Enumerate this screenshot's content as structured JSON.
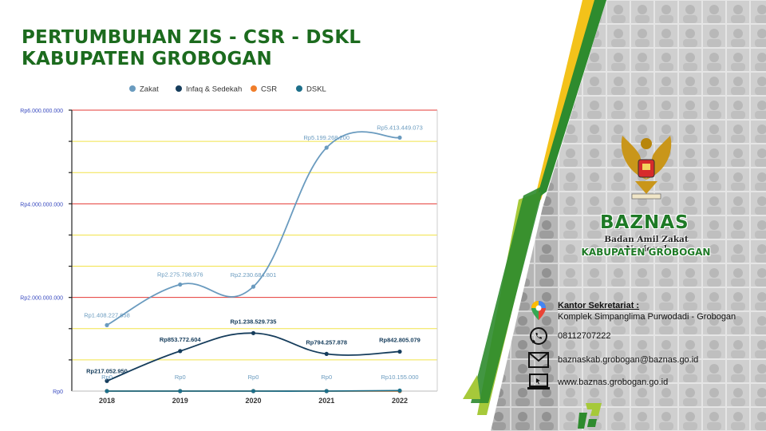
{
  "title": {
    "line1": "PERTUMBUHAN ZIS - CSR - DSKL",
    "line2": "KABUPATEN GROBOGAN"
  },
  "chart_data": {
    "type": "line",
    "categories": [
      "2018",
      "2019",
      "2020",
      "2021",
      "2022"
    ],
    "ylim": [
      0,
      6000000000
    ],
    "y_ticks": [
      {
        "value": 0,
        "label": "Rp0"
      },
      {
        "value": 2000000000,
        "label": "Rp2.000.000.000"
      },
      {
        "value": 4000000000,
        "label": "Rp4.000.000.000"
      },
      {
        "value": 6000000000,
        "label": "Rp6.000.000.000"
      }
    ],
    "legend_position": "top",
    "grid": true,
    "series": [
      {
        "name": "Zakat",
        "color": "#6a9bbf",
        "values": [
          1408227658,
          2275798976,
          2230684801,
          5199268200,
          5413449073
        ],
        "labels": [
          "Rp1.408.227.658",
          "Rp2.275.798.976",
          "Rp2.230.684.801",
          "Rp5.199.268.200",
          "Rp5.413.449.073"
        ]
      },
      {
        "name": "Infaq & Sedekah",
        "color": "#163d5c",
        "values": [
          217052950,
          853772604,
          1238529735,
          794257878,
          842805079
        ],
        "labels": [
          "Rp217.052.950",
          "Rp853.772.604",
          "Rp1.238.529.735",
          "Rp794.257.878",
          "Rp842.805.079"
        ]
      },
      {
        "name": "CSR",
        "color": "#f07d2a",
        "values": [
          0,
          0,
          0,
          0,
          0
        ],
        "labels": []
      },
      {
        "name": "DSKL",
        "color": "#1d6f8a",
        "values": [
          0,
          0,
          0,
          0,
          10155000
        ],
        "labels": [
          "Rp0",
          "Rp0",
          "Rp0",
          "Rp0",
          "Rp10.155.000"
        ]
      }
    ]
  },
  "logo": {
    "name": "BAZNAS",
    "subtitle": "Badan Amil Zakat Nasional",
    "region": "KABUPATEN GROBOGAN"
  },
  "contact": {
    "office_label": "Kantor Sekretariat :",
    "office_address": "Komplek Simpanglima Purwodadi - Grobogan",
    "phone": "08112707222",
    "email": "baznaskab.grobogan@baznas.go.id",
    "website": "www.baznas.grobogan.go.id"
  },
  "icons": [
    "map-pin-icon",
    "whatsapp-icon",
    "mail-icon",
    "laptop-icon",
    "baznas-mark-icon",
    "garuda-emblem-icon"
  ],
  "colors": {
    "title": "#1c6b1e",
    "green": "#2e8b2e",
    "lime": "#a6c93a",
    "gold": "#f3c21a"
  }
}
